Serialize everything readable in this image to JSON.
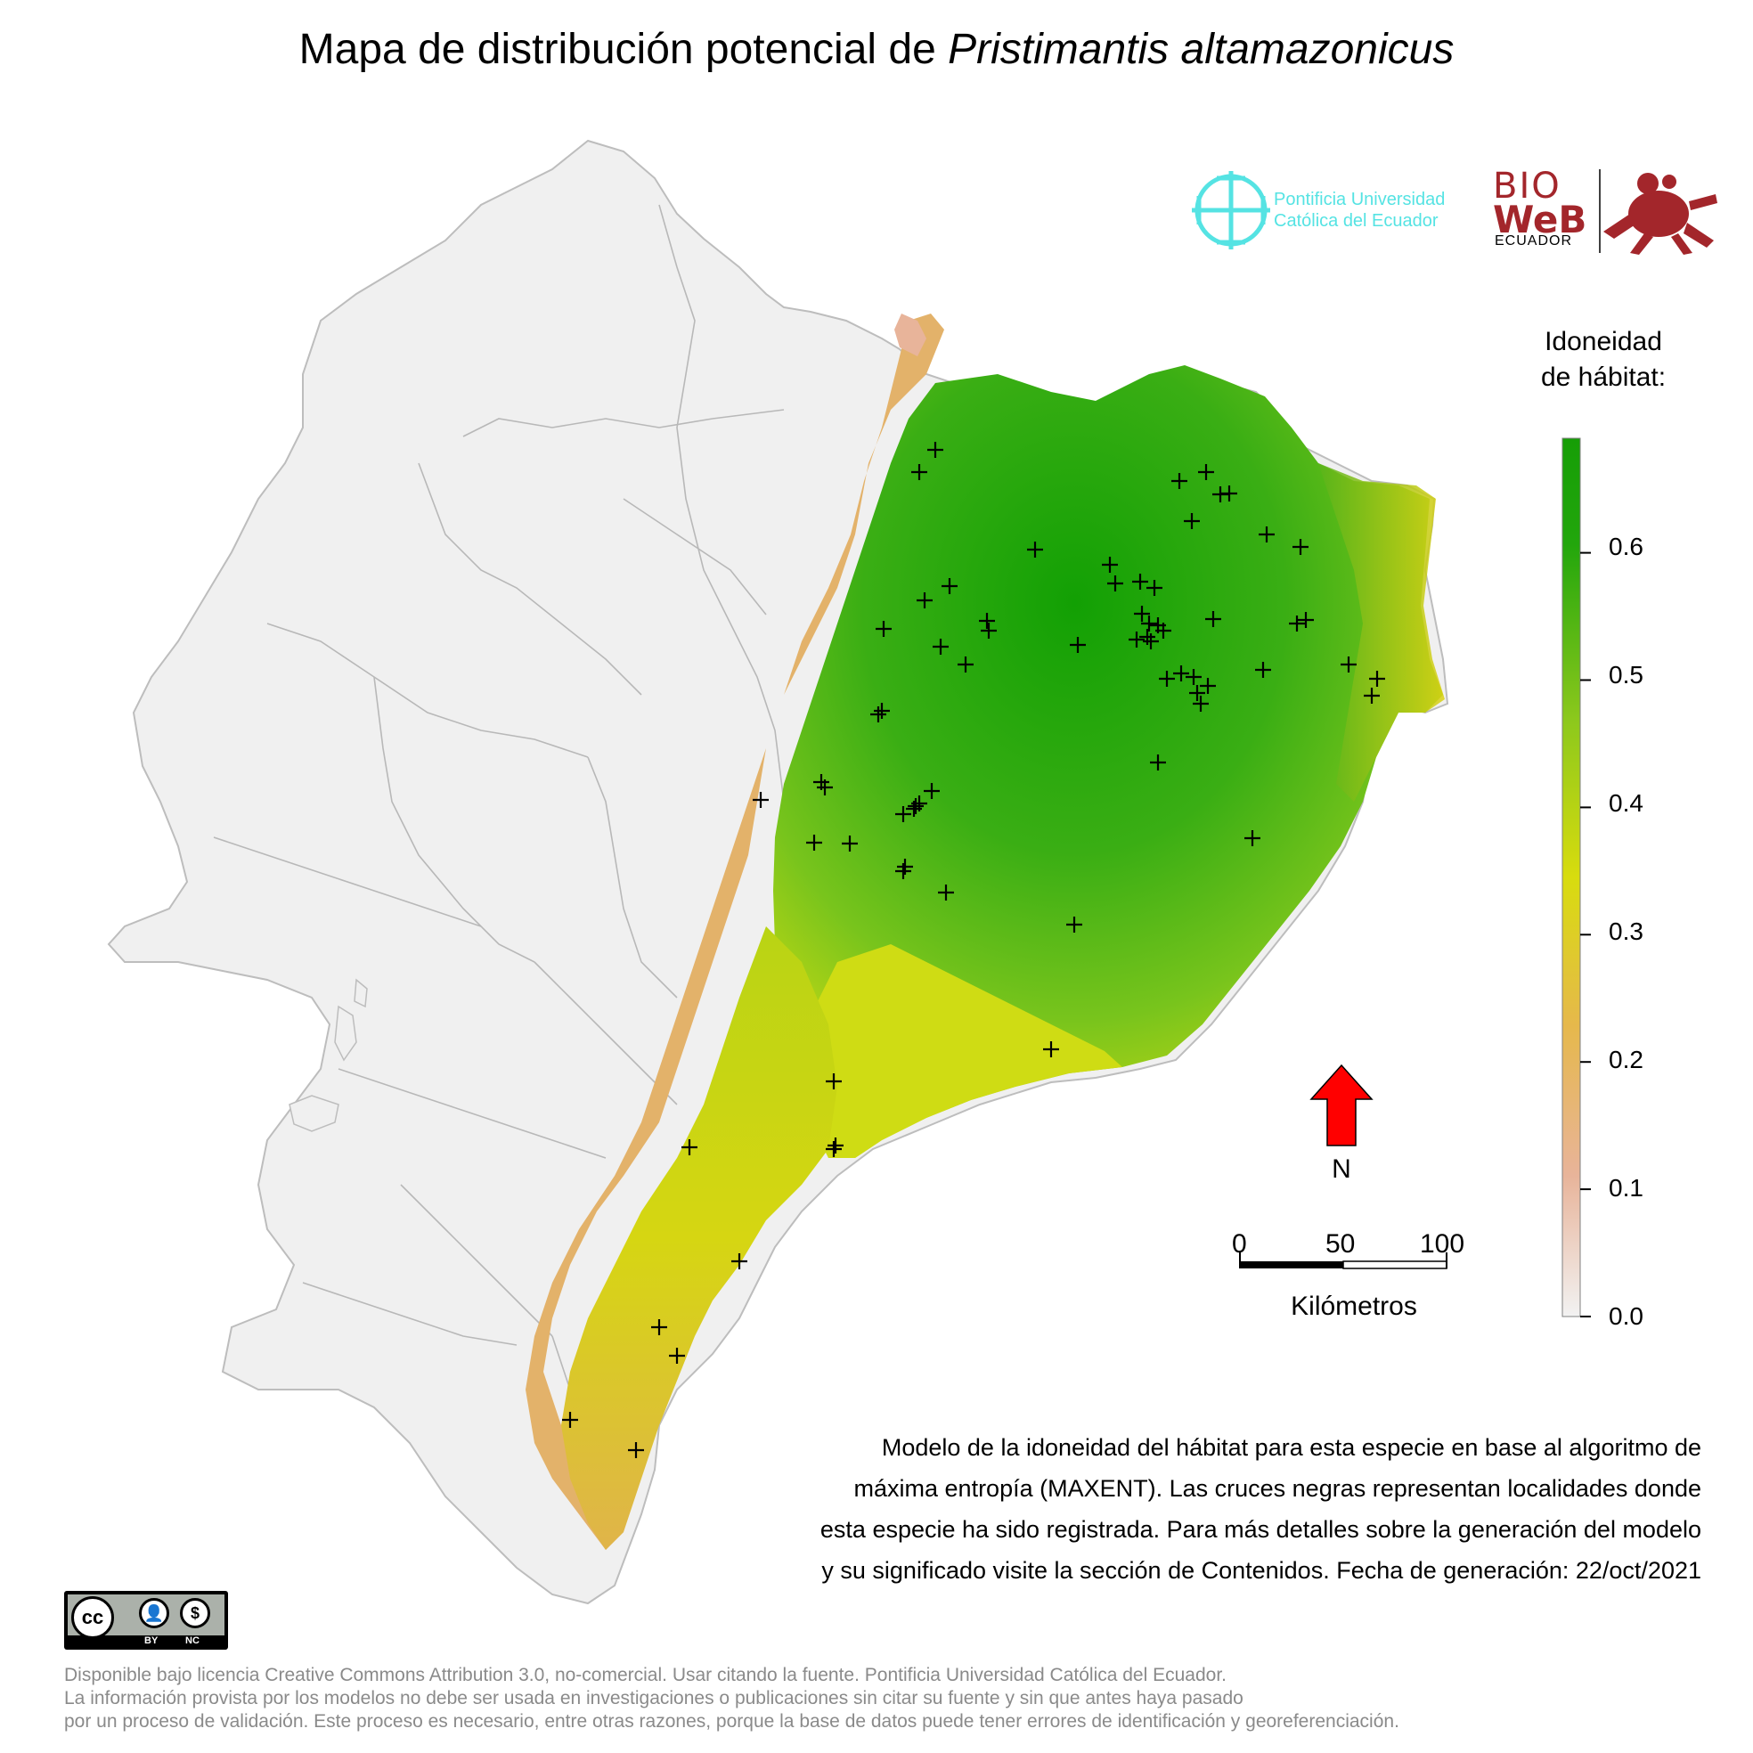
{
  "title": {
    "prefix": "Mapa de distribución potencial de ",
    "species": "Pristimantis altamazonicus"
  },
  "logos": {
    "puce_line1": "Pontificia Universidad",
    "puce_line2": "Católica del Ecuador",
    "bioweb_bio": "BIO",
    "bioweb_web": "WeB",
    "bioweb_ecuador": "ECUADOR"
  },
  "legend": {
    "title_line1": "Idoneidad",
    "title_line2": "de hábitat:",
    "ticks": [
      "0.6",
      "0.5",
      "0.4",
      "0.3",
      "0.2",
      "0.1",
      "0.0"
    ],
    "tick_values": [
      0.6,
      0.5,
      0.4,
      0.3,
      0.2,
      0.1,
      0.0
    ],
    "colors": [
      "#f2f2f2",
      "#e8b49a",
      "#e6b84c",
      "#d8dc0e",
      "#8cc81c",
      "#22a60c",
      "#169e06"
    ]
  },
  "north_arrow": {
    "label": "N",
    "color": "#ff0000"
  },
  "scale_bar": {
    "labels": [
      "0",
      "50",
      "100"
    ],
    "title": "Kilómetros"
  },
  "description": [
    "Modelo de la idoneidad del hábitat para esta especie en base al algoritmo de",
    "máxima entropía (MAXENT). Las cruces negras representan localidades donde",
    "esta especie ha sido registrada. Para más detalles sobre la generación del modelo",
    "y su significado visite la sección de Contenidos. Fecha de generación: 22/oct/2021"
  ],
  "license_badge": {
    "cc": "cc",
    "by": "BY",
    "nc": "NC"
  },
  "footer": [
    "Disponible bajo licencia Creative Commons Attribution 3.0, no-comercial. Usar citando la fuente. Pontificia Universidad Católica del Ecuador.",
    "La información provista por los modelos no debe ser usada en investigaciones o publicaciones sin citar su fuente y sin que antes haya pasado",
    "por un proceso de validación. Este proceso es necesario, entre otras razones, porque la base de datos puede tener errores de identificación y georeferenciación."
  ],
  "occurrences": [
    [
      1050,
      505
    ],
    [
      1032,
      530
    ],
    [
      1324,
      540
    ],
    [
      1354,
      530
    ],
    [
      1370,
      555
    ],
    [
      1380,
      554
    ],
    [
      1338,
      585
    ],
    [
      1162,
      617
    ],
    [
      1246,
      634
    ],
    [
      1252,
      655
    ],
    [
      1280,
      653
    ],
    [
      1296,
      660
    ],
    [
      1422,
      600
    ],
    [
      1460,
      614
    ],
    [
      1066,
      658
    ],
    [
      1038,
      674
    ],
    [
      1108,
      697
    ],
    [
      1110,
      708
    ],
    [
      992,
      706
    ],
    [
      1056,
      726
    ],
    [
      1210,
      724
    ],
    [
      1282,
      689
    ],
    [
      1290,
      700
    ],
    [
      1300,
      702
    ],
    [
      1306,
      708
    ],
    [
      1276,
      718
    ],
    [
      1288,
      715
    ],
    [
      1292,
      720
    ],
    [
      1362,
      695
    ],
    [
      1466,
      696
    ],
    [
      1456,
      700
    ],
    [
      1084,
      746
    ],
    [
      1326,
      756
    ],
    [
      1340,
      760
    ],
    [
      1356,
      770
    ],
    [
      1344,
      778
    ],
    [
      1348,
      790
    ],
    [
      1310,
      762
    ],
    [
      1418,
      752
    ],
    [
      1514,
      746
    ],
    [
      1546,
      762
    ],
    [
      1540,
      781
    ],
    [
      990,
      798
    ],
    [
      986,
      802
    ],
    [
      922,
      878
    ],
    [
      926,
      884
    ],
    [
      1300,
      856
    ],
    [
      854,
      898
    ],
    [
      1046,
      888
    ],
    [
      1026,
      908
    ],
    [
      1014,
      914
    ],
    [
      1028,
      905
    ],
    [
      1032,
      902
    ],
    [
      954,
      947
    ],
    [
      914,
      946
    ],
    [
      1016,
      973
    ],
    [
      1014,
      978
    ],
    [
      1062,
      1002
    ],
    [
      1206,
      1038
    ],
    [
      1406,
      941
    ],
    [
      1180,
      1178
    ],
    [
      936,
      1214
    ],
    [
      936,
      1290
    ],
    [
      938,
      1286
    ],
    [
      774,
      1288
    ],
    [
      830,
      1416
    ],
    [
      740,
      1490
    ],
    [
      760,
      1522
    ],
    [
      640,
      1594
    ],
    [
      714,
      1628
    ]
  ]
}
